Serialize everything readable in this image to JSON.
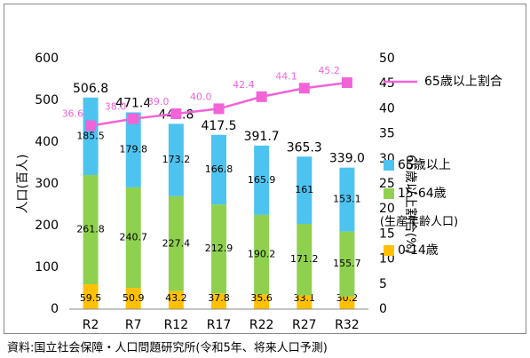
{
  "chart_data": {
    "type": "bar",
    "categories": [
      "R2",
      "R7",
      "R12",
      "R17",
      "R22",
      "R27",
      "R32"
    ],
    "series": [
      {
        "name": "0-14歳",
        "color": "#ffc000",
        "values": [
          59.5,
          50.9,
          43.2,
          37.8,
          35.6,
          33.1,
          30.2
        ]
      },
      {
        "name": "15-64歳",
        "color": "#8fd14f",
        "values": [
          261.8,
          240.7,
          227.4,
          212.9,
          190.2,
          171.2,
          155.7
        ]
      },
      {
        "name": "65歳以上",
        "color": "#4dc3f0",
        "values": [
          185.5,
          179.8,
          173.2,
          166.8,
          165.9,
          161,
          153.1
        ]
      },
      {
        "name": "65歳以上割合",
        "type": "line",
        "axis": "y2",
        "color": "#f064d8",
        "values": [
          36.6,
          38.0,
          39.0,
          40.0,
          42.4,
          44.1,
          45.2
        ],
        "value_labels": [
          "36.6",
          "38.0",
          "39.0",
          "40.0",
          "42.4",
          "44.1",
          "45.2"
        ]
      }
    ],
    "totals": {
      "values": [
        506.8,
        471.4,
        443.8,
        417.5,
        391.7,
        365.3,
        339
      ],
      "value_labels": [
        "506.8",
        "471.4",
        "443.8",
        "417.5",
        "391.7",
        "365.3",
        "339.0"
      ]
    },
    "legend_note": "(生産年齢人口)",
    "ylabel": "人口(百人)",
    "y2label": "65歳以上割合(%)",
    "ylim": [
      0,
      600
    ],
    "yticks": [
      0,
      100,
      200,
      300,
      400,
      500,
      600
    ],
    "y2lim": [
      0,
      50
    ],
    "y2ticks": [
      0,
      5,
      10,
      15,
      20,
      25,
      30,
      35,
      40,
      45,
      50
    ],
    "source": "資料:国立社会保障・人口問題研究所(令和5年、将来人口予測)"
  }
}
